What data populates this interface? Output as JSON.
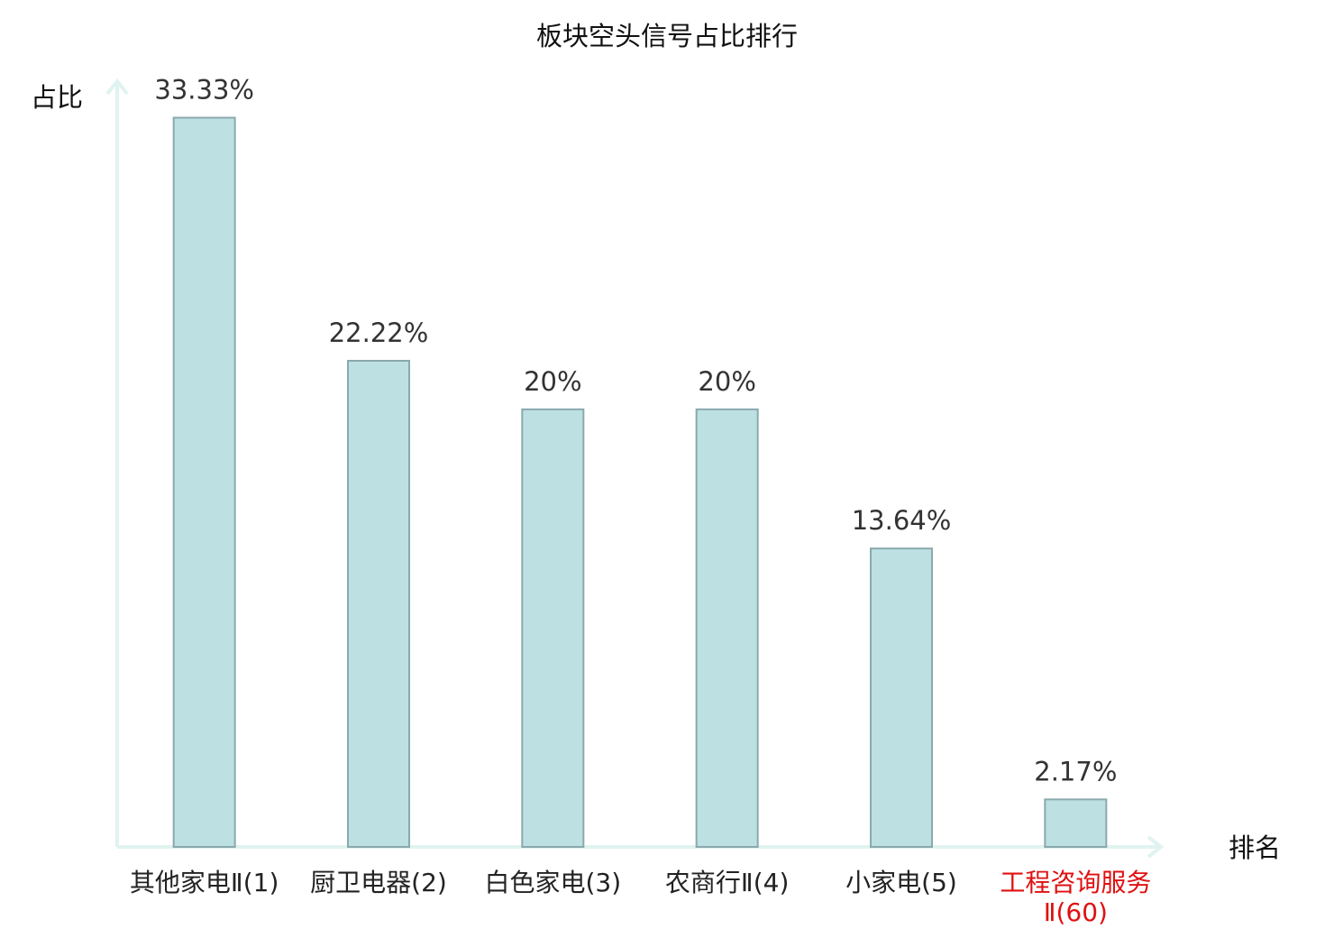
{
  "chart_data": {
    "type": "bar",
    "title": "板块空头信号占比排行",
    "y_label": "占比",
    "x_label": "排名",
    "categories": [
      "其他家电Ⅱ(1)",
      "厨卫电器(2)",
      "白色家电(3)",
      "农商行Ⅱ(4)",
      "小家电(5)",
      "工程咨询服务Ⅱ(60)"
    ],
    "values": [
      33.33,
      22.22,
      20,
      20,
      13.64,
      2.17
    ],
    "value_labels": [
      "33.33%",
      "22.22%",
      "20%",
      "20%",
      "13.64%",
      "2.17%"
    ],
    "color": "#bde0e3",
    "edge_color": "#8aa9ad",
    "label_colors": [
      "#222222",
      "#222222",
      "#222222",
      "#222222",
      "#222222",
      "#e01010"
    ],
    "ylim": [
      0,
      35
    ],
    "grid": false
  }
}
